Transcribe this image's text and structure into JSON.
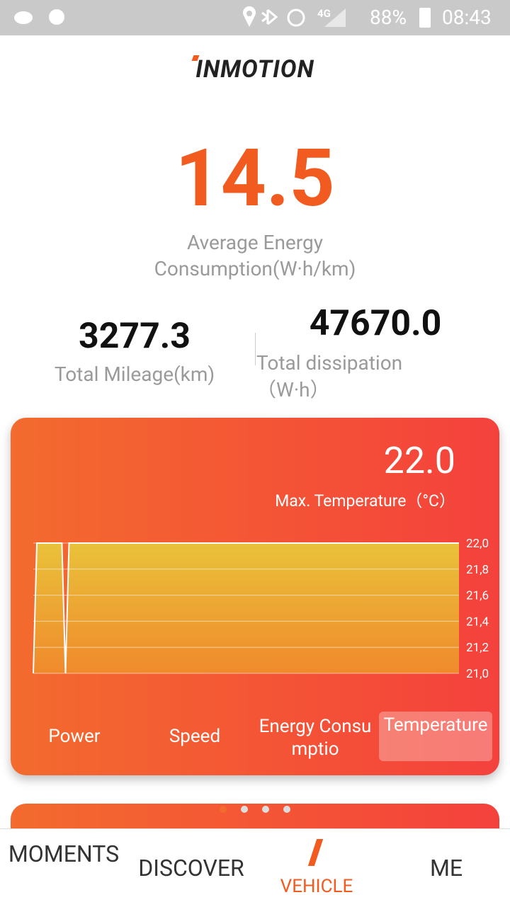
{
  "status_bar": {
    "network": "4G",
    "battery": "88%",
    "time": "08:43"
  },
  "header": {
    "logo": "INMOTION"
  },
  "summary": {
    "average": {
      "value": "14.5",
      "label": "Average Energy Consumption(W·h/km)"
    },
    "mileage": {
      "value": "3277.3",
      "label": "Total Mileage(km)"
    },
    "dissipation": {
      "value": "47670.0",
      "label": "Total dissipation（W·h）"
    }
  },
  "card": {
    "value": "22.0",
    "label": "Max. Temperature（°C）",
    "tabs": [
      "Power",
      "Speed",
      "Energy Consumptio",
      "Temperature"
    ],
    "active_tab": 3
  },
  "chart_data": {
    "type": "area",
    "color": "#ffffff",
    "fill_top": "#e9c23a",
    "fill_bottom": "#f08a2c",
    "values": [
      21,
      22,
      22,
      22,
      22,
      22,
      22,
      22,
      22,
      21,
      22,
      22,
      22,
      22,
      22,
      22,
      22,
      22,
      22,
      22,
      22,
      22,
      22,
      22,
      22,
      22,
      22,
      22,
      22,
      22,
      22,
      22,
      22,
      22,
      22,
      22,
      22,
      22,
      22,
      22,
      22,
      22,
      22,
      22,
      22,
      22,
      22,
      22,
      22,
      22,
      22,
      22,
      22,
      22,
      22,
      22,
      22,
      22,
      22,
      22,
      22,
      22,
      22,
      22,
      22,
      22,
      22,
      22,
      22,
      22,
      22,
      22,
      22,
      22,
      22,
      22,
      22,
      22,
      22,
      22,
      22,
      22,
      22,
      22,
      22,
      22,
      22,
      22,
      22,
      22,
      22,
      22,
      22,
      22,
      22,
      22,
      22,
      22,
      22,
      22,
      22,
      22,
      22,
      22,
      22,
      22,
      22,
      22,
      22,
      22,
      22,
      22,
      22,
      22,
      22,
      22,
      22,
      22,
      22,
      22
    ],
    "ylim": [
      21,
      22
    ],
    "yticks": [
      {
        "value": 21,
        "label": "21,0"
      },
      {
        "value": 21.2,
        "label": "21,2"
      },
      {
        "value": 21.4,
        "label": "21,4"
      },
      {
        "value": 21.6,
        "label": "21,6"
      },
      {
        "value": 21.8,
        "label": "21,8"
      },
      {
        "value": 22,
        "label": "22,0"
      }
    ],
    "grid": true
  },
  "nav": {
    "items": [
      "MOMENTS",
      "DISCOVER",
      "VEHICLE",
      "ME"
    ],
    "active": 2
  }
}
